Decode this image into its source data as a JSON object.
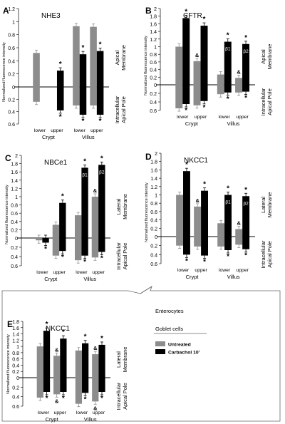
{
  "figure": {
    "shared_ylabel": "Normalized fluorescence intensity",
    "region_groups": [
      "Crypt",
      "Villus"
    ],
    "segment_labels": [
      "lower",
      "upper"
    ],
    "marks": {
      "star": "*",
      "amp": "&"
    },
    "callout_labels": [
      "Enterocytes",
      "Goblet cells"
    ]
  },
  "legend": {
    "items": [
      {
        "label": "Untreated",
        "color": "#8c8c8c"
      },
      {
        "label": "Carbachol 10'",
        "color": "#000000"
      }
    ]
  },
  "colors": {
    "untreated": "#8c8c8c",
    "carbachol": "#000000"
  },
  "chart_data": [
    {
      "type": "bar",
      "panel": "A",
      "title": "NHE3",
      "ylabel": "Normalized fluorescence intensity",
      "ylim": [
        -0.6,
        1.2
      ],
      "ticks": [
        "1.2",
        "1",
        "0.8",
        "0.6",
        "0.4",
        "0.2",
        "0",
        "0.2",
        "0.4",
        "0.6"
      ],
      "side_labels": {
        "top": [
          "Apical",
          "Membrane"
        ],
        "bottom": [
          "Intracellular",
          "Apical Pole"
        ]
      },
      "categories": [
        "Crypt lower",
        "Crypt upper",
        "Villus lower",
        "Villus upper"
      ],
      "series": [
        {
          "name": "Untreated",
          "apical": [
            0.52,
            0,
            0.93,
            0.92
          ],
          "intracellular": [
            -0.24,
            0,
            -0.3,
            -0.3
          ]
        },
        {
          "name": "Carbachol 10'",
          "apical": [
            0,
            0.25,
            0.5,
            0.55
          ],
          "intracellular": [
            0,
            -0.38,
            -0.45,
            -0.45
          ]
        }
      ],
      "annotations": [
        {
          "category": 1,
          "series": 1,
          "side": "top",
          "mark": "star"
        },
        {
          "category": 1,
          "series": 1,
          "side": "bottom",
          "mark": "star"
        },
        {
          "category": 2,
          "series": 1,
          "side": "top",
          "mark": "star"
        },
        {
          "category": 2,
          "series": 1,
          "side": "bottom",
          "mark": "star"
        },
        {
          "category": 3,
          "series": 1,
          "side": "top",
          "mark": "star"
        },
        {
          "category": 3,
          "series": 1,
          "side": "bottom",
          "mark": "star"
        }
      ]
    },
    {
      "type": "bar",
      "panel": "B",
      "title": "CFTR",
      "ylabel": "Normalized fluorescence intensity",
      "ylim": [
        -0.6,
        2.0
      ],
      "ticks": [
        "2",
        "1.8",
        "1.6",
        "1.4",
        "1.2",
        "1",
        "0.8",
        "0.6",
        "0.4",
        "0.2",
        "0",
        "0.2",
        "0.4",
        "0.6"
      ],
      "side_labels": {
        "top": [
          "Apical",
          "Membrane"
        ],
        "bottom": [
          "Intracellular",
          "Apical Pole"
        ]
      },
      "categories": [
        "Crypt lower",
        "Crypt upper",
        "Villus lower",
        "Villus upper"
      ],
      "series": [
        {
          "name": "Untreated",
          "apical": [
            1.0,
            0.62,
            0.27,
            0.18
          ],
          "intracellular": [
            -0.55,
            -0.48,
            -0.22,
            -0.18
          ]
        },
        {
          "name": "Carbachol 10'",
          "apical": [
            1.75,
            1.55,
            1.13,
            1.07
          ],
          "intracellular": [
            -0.45,
            -0.38,
            -0.18,
            -0.16
          ]
        }
      ],
      "annotations": [
        {
          "category": 0,
          "series": 1,
          "side": "top",
          "mark": "star"
        },
        {
          "category": 0,
          "series": 1,
          "side": "bottom",
          "mark": "star"
        },
        {
          "category": 1,
          "series": 0,
          "side": "top",
          "mark": "amp"
        },
        {
          "category": 1,
          "series": 1,
          "side": "top",
          "mark": "star"
        },
        {
          "category": 1,
          "series": 1,
          "side": "bottom",
          "mark": "star"
        },
        {
          "category": 2,
          "series": 1,
          "side": "top",
          "mark": "star"
        },
        {
          "category": 2,
          "series": 1,
          "side": "bottom",
          "mark": "star"
        },
        {
          "category": 3,
          "series": 0,
          "side": "top",
          "mark": "amp"
        },
        {
          "category": 3,
          "series": 1,
          "side": "top",
          "mark": "star"
        },
        {
          "category": 3,
          "series": 1,
          "side": "bottom",
          "mark": "star"
        }
      ],
      "bar_labels": [
        {
          "category": 2,
          "series": 1,
          "text": "β1"
        },
        {
          "category": 3,
          "series": 1,
          "text": "β2"
        }
      ]
    },
    {
      "type": "bar",
      "panel": "C",
      "title": "NBCe1",
      "ylabel": "Normalized fluorescence intensity",
      "ylim": [
        -0.6,
        2.0
      ],
      "ticks": [
        "2",
        "1.8",
        "1.6",
        "1.4",
        "1.2",
        "1",
        "0.8",
        "0.6",
        "0.4",
        "0.2",
        "0",
        "0.2",
        "0.4",
        "0.6"
      ],
      "side_labels": {
        "top": [
          "Lateral",
          "Membrane"
        ],
        "bottom": [
          "Intracellular",
          "Apical Pole"
        ]
      },
      "categories": [
        "Crypt lower",
        "Crypt upper",
        "Villus lower",
        "Villus upper"
      ],
      "series": [
        {
          "name": "Untreated",
          "apical": [
            0,
            0.32,
            0.55,
            1.0
          ],
          "intracellular": [
            -0.05,
            -0.38,
            -0.48,
            -0.42
          ]
        },
        {
          "name": "Carbachol 10'",
          "apical": [
            0,
            0.85,
            1.7,
            1.77
          ],
          "intracellular": [
            -0.1,
            -0.28,
            -0.38,
            -0.3
          ]
        }
      ],
      "annotations": [
        {
          "category": 0,
          "series": 1,
          "side": "bottom",
          "mark": "star"
        },
        {
          "category": 1,
          "series": 1,
          "side": "top",
          "mark": "star"
        },
        {
          "category": 1,
          "series": 1,
          "side": "bottom",
          "mark": "star"
        },
        {
          "category": 2,
          "series": 1,
          "side": "top",
          "mark": "star"
        },
        {
          "category": 2,
          "series": 1,
          "side": "bottom",
          "mark": "star"
        },
        {
          "category": 3,
          "series": 0,
          "side": "top",
          "mark": "amp"
        },
        {
          "category": 3,
          "series": 1,
          "side": "top",
          "mark": "star"
        },
        {
          "category": 3,
          "series": 1,
          "side": "bottom",
          "mark": "star"
        }
      ],
      "bar_labels": [
        {
          "category": 2,
          "series": 1,
          "text": "β1"
        },
        {
          "category": 3,
          "series": 1,
          "text": "β2"
        }
      ]
    },
    {
      "type": "bar",
      "panel": "D",
      "title": "NKCC1",
      "ylabel": "Normalized fluorescence intensity",
      "ylim": [
        -0.6,
        2.0
      ],
      "ticks": [
        "2",
        "1.8",
        "1.6",
        "1.4",
        "1.2",
        "1",
        "0.8",
        "0.6",
        "0.4",
        "0.2",
        "0",
        "0.2",
        "0.4",
        "0.6"
      ],
      "side_labels": {
        "top": [
          "Lateral",
          "Membrane"
        ],
        "bottom": [
          "Intracellular",
          "Apical Pole"
        ]
      },
      "categories": [
        "Crypt lower",
        "Crypt upper",
        "Villus lower",
        "Villus upper"
      ],
      "series": [
        {
          "name": "Untreated",
          "apical": [
            1.0,
            0.72,
            0.32,
            0.18
          ],
          "intracellular": [
            -0.2,
            -0.22,
            -0.22,
            -0.18
          ]
        },
        {
          "name": "Carbachol 10'",
          "apical": [
            1.57,
            1.1,
            1.0,
            0.97
          ],
          "intracellular": [
            -0.4,
            -0.42,
            -0.3,
            -0.28
          ]
        }
      ],
      "annotations": [
        {
          "category": 0,
          "series": 1,
          "side": "top",
          "mark": "star"
        },
        {
          "category": 0,
          "series": 1,
          "side": "bottom",
          "mark": "star"
        },
        {
          "category": 1,
          "series": 0,
          "side": "top",
          "mark": "amp"
        },
        {
          "category": 1,
          "series": 1,
          "side": "top",
          "mark": "star"
        },
        {
          "category": 1,
          "series": 1,
          "side": "bottom",
          "mark": "star"
        },
        {
          "category": 2,
          "series": 1,
          "side": "top",
          "mark": "star"
        },
        {
          "category": 2,
          "series": 1,
          "side": "bottom",
          "mark": "star"
        },
        {
          "category": 3,
          "series": 0,
          "side": "top",
          "mark": "amp"
        },
        {
          "category": 3,
          "series": 1,
          "side": "top",
          "mark": "star"
        },
        {
          "category": 3,
          "series": 1,
          "side": "bottom",
          "mark": "star"
        }
      ],
      "bar_labels": [
        {
          "category": 2,
          "series": 1,
          "text": "β1"
        },
        {
          "category": 3,
          "series": 1,
          "text": "β2"
        }
      ]
    },
    {
      "type": "bar",
      "panel": "E",
      "title": "NKCC1",
      "ylabel": "Normalized fluorescence intensity",
      "ylim": [
        -0.6,
        1.8
      ],
      "ticks": [
        "1.8",
        "1.6",
        "1.4",
        "1.2",
        "1",
        "0.8",
        "0.6",
        "0.4",
        "0.2",
        "0",
        "0.2",
        "0.4",
        "0.6"
      ],
      "side_labels": {
        "top": [
          "Lateral",
          "Membrane"
        ],
        "bottom": [
          "Intracellular",
          "Apical Pole"
        ]
      },
      "categories": [
        "Crypt lower",
        "Crypt upper",
        "Villus lower",
        "Villus upper"
      ],
      "series": [
        {
          "name": "Untreated",
          "apical": [
            1.0,
            0.7,
            0.87,
            0.75
          ],
          "intracellular": [
            -0.42,
            -0.35,
            -0.55,
            -0.5
          ]
        },
        {
          "name": "Carbachol 10'",
          "apical": [
            1.5,
            1.25,
            1.1,
            1.05
          ],
          "intracellular": [
            -0.3,
            -0.3,
            -0.32,
            -0.3
          ]
        }
      ],
      "annotations": [
        {
          "category": 0,
          "series": 1,
          "side": "top",
          "mark": "star"
        },
        {
          "category": 0,
          "series": 1,
          "side": "bottom",
          "mark": "star"
        },
        {
          "category": 1,
          "series": 0,
          "side": "top",
          "mark": "amp"
        },
        {
          "category": 1,
          "series": 0,
          "side": "bottom",
          "mark": "amp"
        },
        {
          "category": 1,
          "series": 1,
          "side": "top",
          "mark": "star"
        },
        {
          "category": 1,
          "series": 1,
          "side": "bottom",
          "mark": "star"
        },
        {
          "category": 2,
          "series": 1,
          "side": "top",
          "mark": "star"
        },
        {
          "category": 2,
          "series": 1,
          "side": "bottom",
          "mark": "star"
        },
        {
          "category": 3,
          "series": 0,
          "side": "top",
          "mark": "amp"
        },
        {
          "category": 3,
          "series": 0,
          "side": "bottom",
          "mark": "amp"
        },
        {
          "category": 3,
          "series": 1,
          "side": "top",
          "mark": "star"
        },
        {
          "category": 3,
          "series": 1,
          "side": "bottom",
          "mark": "star"
        }
      ]
    }
  ]
}
